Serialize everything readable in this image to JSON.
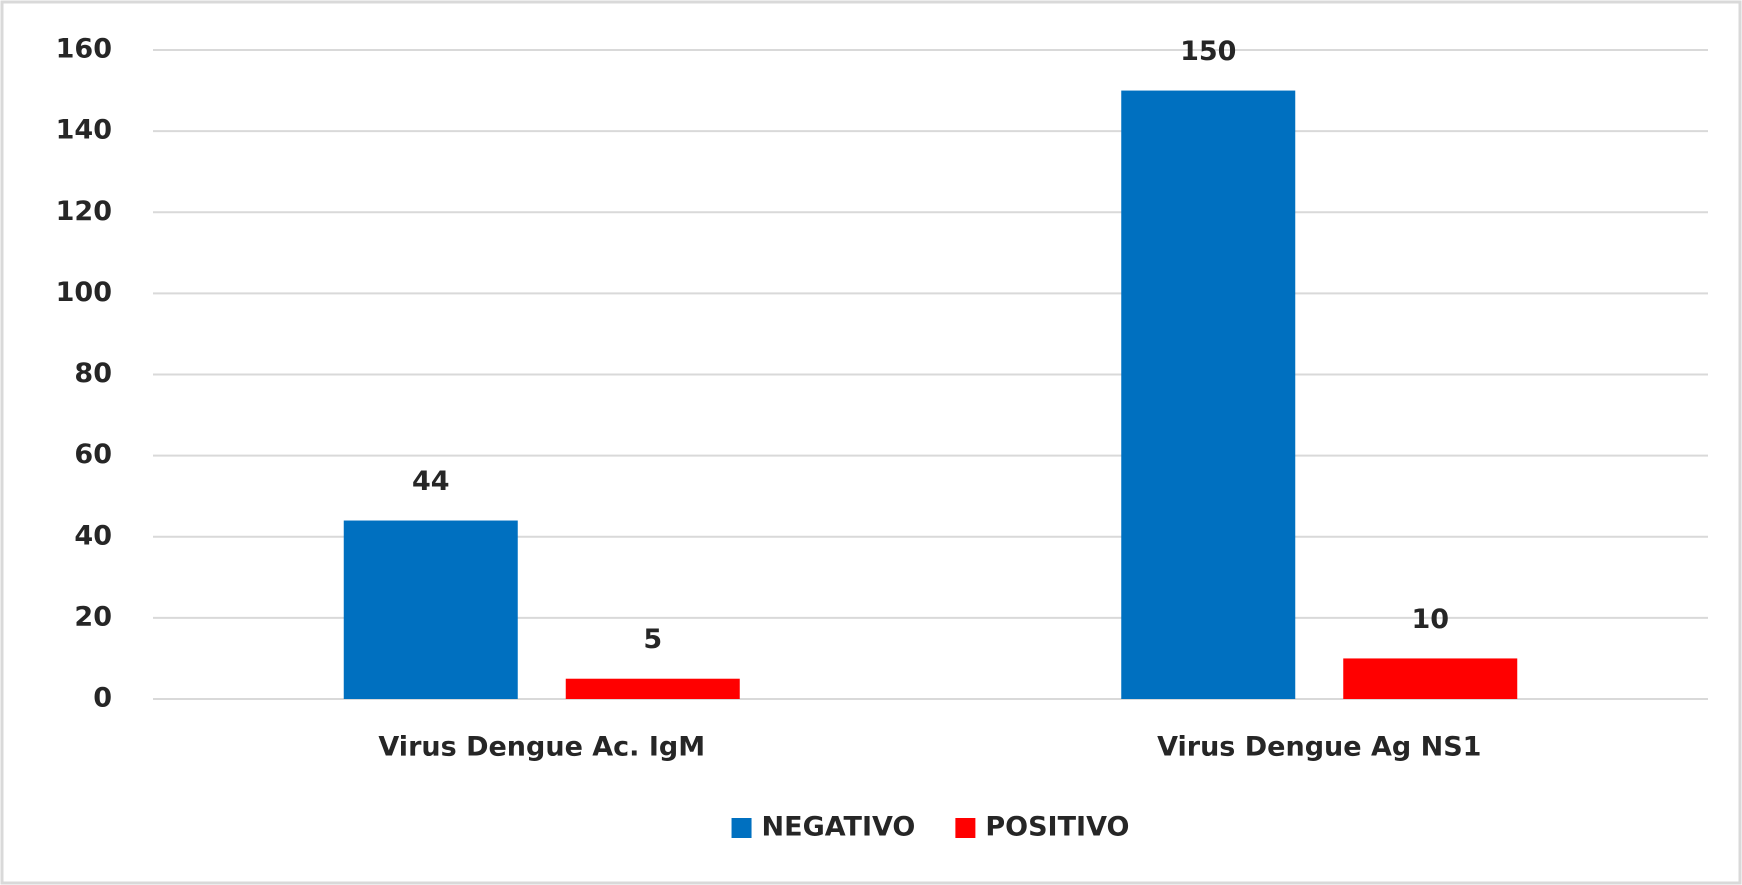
{
  "chart_data": {
    "type": "bar",
    "categories": [
      "Virus Dengue Ac. IgM",
      "Virus Dengue Ag NS1"
    ],
    "series": [
      {
        "name": "NEGATIVO",
        "color": "#0070c0",
        "values": [
          44,
          150
        ]
      },
      {
        "name": "POSITIVO",
        "color": "#ff0000",
        "values": [
          5,
          10
        ]
      }
    ],
    "ylim": [
      0,
      160
    ],
    "yticks": [
      0,
      20,
      40,
      60,
      80,
      100,
      120,
      140,
      160
    ],
    "grid": true,
    "legend": "bottom"
  }
}
